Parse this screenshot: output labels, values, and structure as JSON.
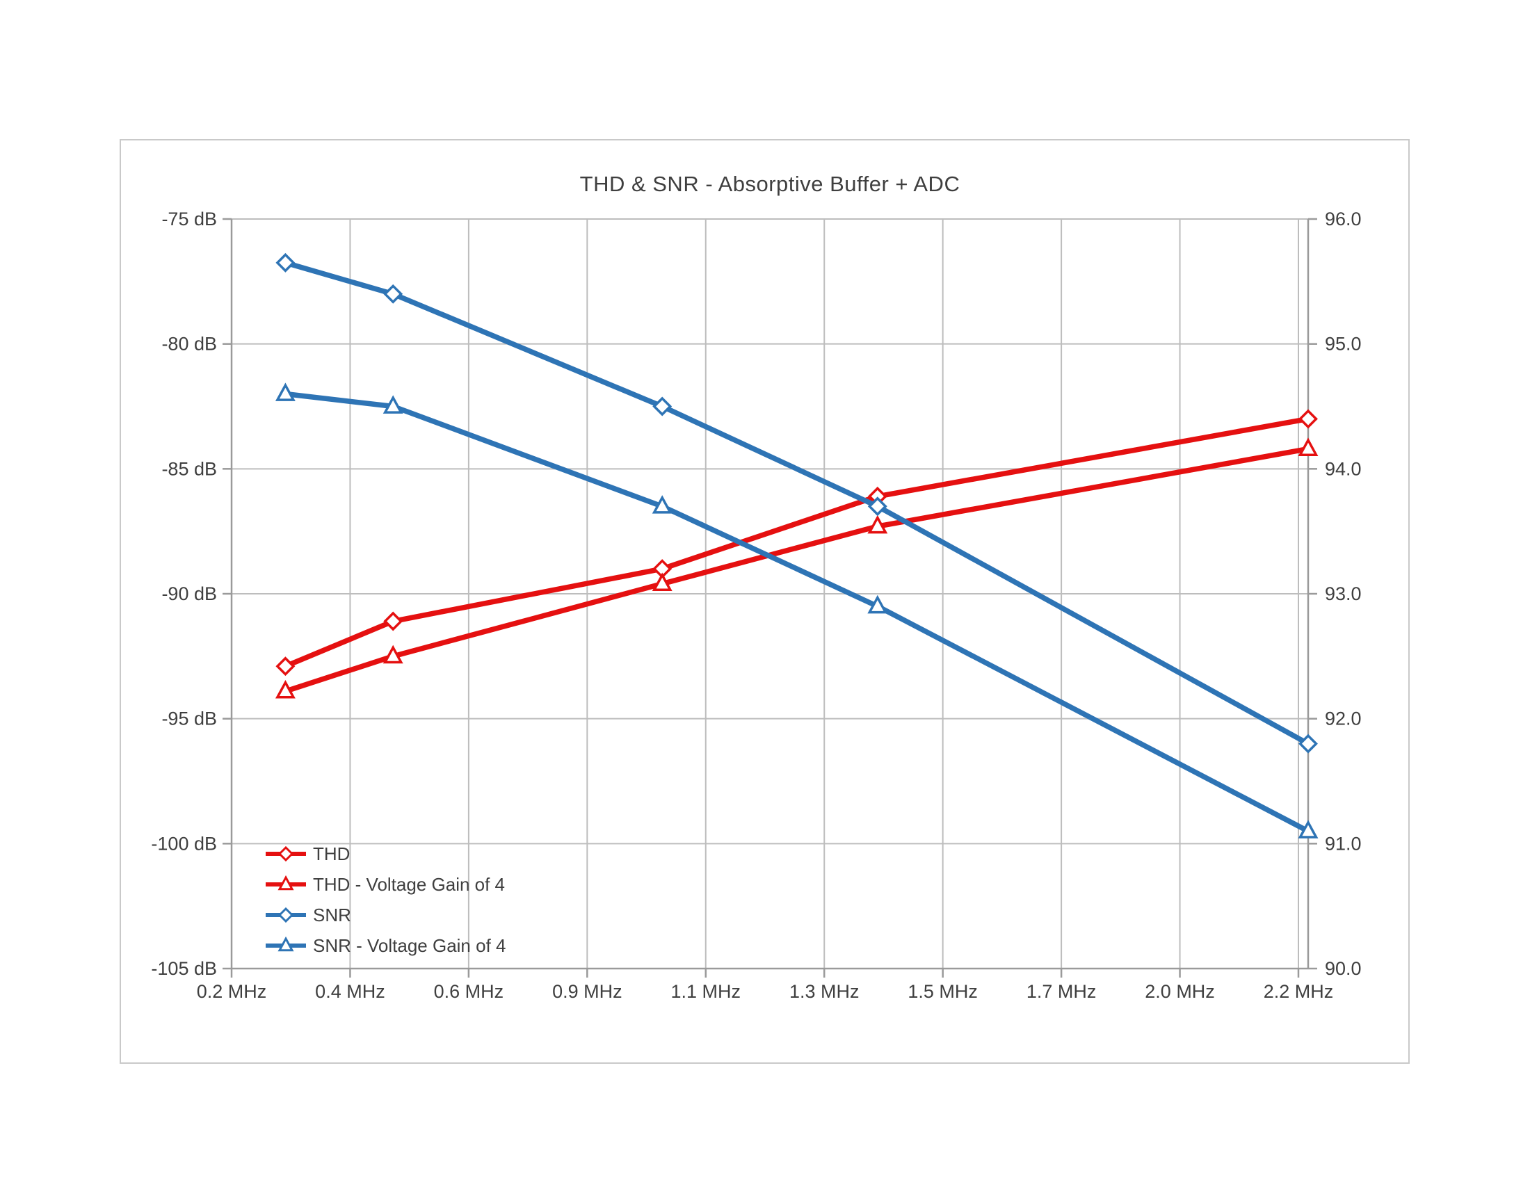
{
  "chart_data": {
    "type": "line",
    "title": "THD & SNR - Absorptive Buffer + ADC",
    "x": [
      0.3,
      0.5,
      1.0,
      1.4,
      2.2
    ],
    "x_unit": "MHz",
    "x_axis": {
      "min": 0.2,
      "max": 2.2,
      "tick_labels": [
        "0.2 MHz",
        "0.4 MHz",
        "0.6 MHz",
        "0.9 MHz",
        "1.1 MHz",
        "1.3 MHz",
        "1.5 MHz",
        "1.7 MHz",
        "2.0 MHz",
        "2.2 MHz"
      ],
      "gridlines": true
    },
    "y_axis_left": {
      "unit": "dB",
      "min": -105,
      "max": -75,
      "tick_labels": [
        "-75 dB",
        "-80 dB",
        "-85 dB",
        "-90 dB",
        "-95 dB",
        "-100 dB",
        "-105 dB"
      ],
      "gridlines": true
    },
    "y_axis_right": {
      "min": 90.0,
      "max": 96.0,
      "tick_labels": [
        "96.0",
        "95.0",
        "94.0",
        "93.0",
        "92.0",
        "91.0",
        "90.0"
      ]
    },
    "series": [
      {
        "name": "THD",
        "axis": "left",
        "marker": "diamond",
        "color": "#e51010",
        "values": [
          -92.9,
          -91.1,
          -89.0,
          -86.1,
          -83.0
        ]
      },
      {
        "name": "THD - Voltage Gain of 4",
        "axis": "left",
        "marker": "triangle",
        "color": "#e51010",
        "values": [
          -93.9,
          -92.5,
          -89.6,
          -87.3,
          -84.2
        ]
      },
      {
        "name": "SNR",
        "axis": "right",
        "marker": "diamond",
        "color": "#2e74b5",
        "values": [
          95.65,
          95.4,
          94.5,
          93.7,
          91.8
        ]
      },
      {
        "name": "SNR - Voltage Gain of 4",
        "axis": "right",
        "marker": "triangle",
        "color": "#2e74b5",
        "values": [
          94.6,
          94.5,
          93.7,
          92.9,
          91.1
        ]
      }
    ],
    "legend_position": "inside-bottom-left",
    "colors": {
      "red_series": "#e51010",
      "blue_series": "#2e74b5",
      "gridline": "#bdbdbd",
      "axis_line": "#9a9a9a",
      "text": "#3f3f3f",
      "chart_border": "#c9c9c9",
      "background": "#ffffff"
    }
  }
}
